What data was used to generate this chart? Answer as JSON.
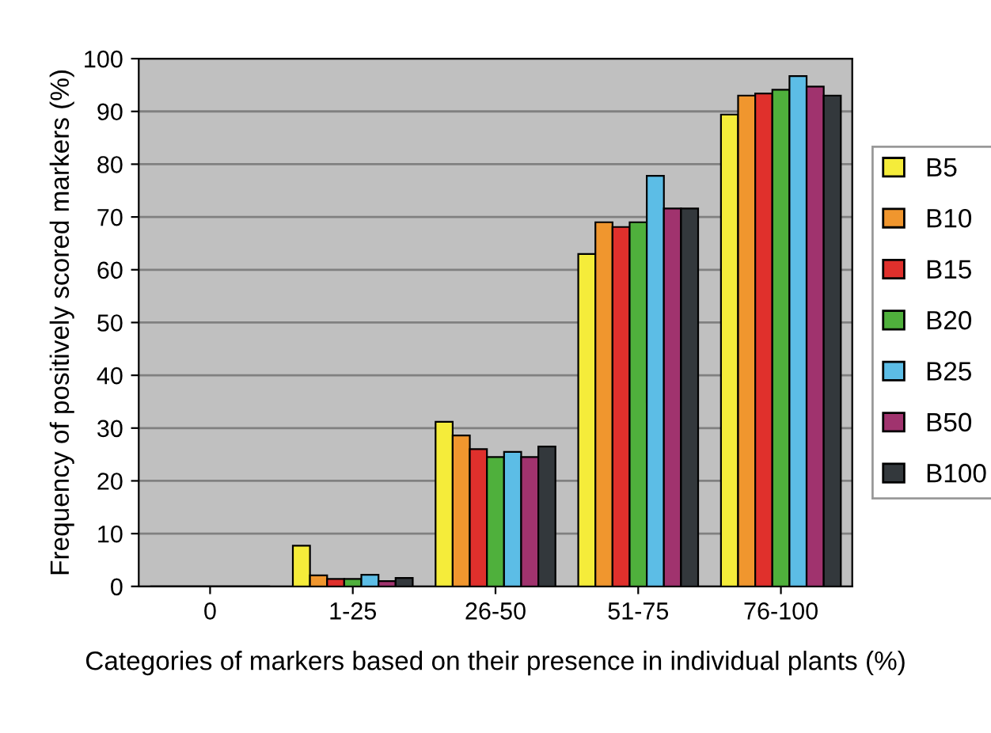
{
  "chart_data": {
    "type": "bar",
    "xlabel": "Categories of markers based on their presence in individual plants (%)",
    "ylabel": "Frequency of positively scored markers (%)",
    "categories": [
      "0",
      "1-25",
      "26-50",
      "51-75",
      "76-100"
    ],
    "series": [
      {
        "name": "B5",
        "color": "#f5ec3a",
        "values": [
          0,
          7.7,
          31.2,
          63,
          89.4
        ]
      },
      {
        "name": "B10",
        "color": "#f0962e",
        "values": [
          0,
          2.1,
          28.6,
          69,
          93
        ]
      },
      {
        "name": "B15",
        "color": "#e0302c",
        "values": [
          0,
          1.4,
          26,
          68.1,
          93.4
        ]
      },
      {
        "name": "B20",
        "color": "#4fb03c",
        "values": [
          0,
          1.4,
          24.5,
          69,
          94.1
        ]
      },
      {
        "name": "B25",
        "color": "#5cbde6",
        "values": [
          0,
          2.2,
          25.5,
          77.8,
          96.7
        ]
      },
      {
        "name": "B50",
        "color": "#a0336e",
        "values": [
          0,
          1,
          24.5,
          71.6,
          94.7
        ]
      },
      {
        "name": "B100",
        "color": "#33383c",
        "values": [
          0,
          1.6,
          26.5,
          71.6,
          93
        ]
      }
    ],
    "ylim": [
      0,
      100
    ],
    "yticks": [
      0,
      10,
      20,
      30,
      40,
      50,
      60,
      70,
      80,
      90,
      100
    ],
    "grid": "y",
    "legend": "right"
  }
}
